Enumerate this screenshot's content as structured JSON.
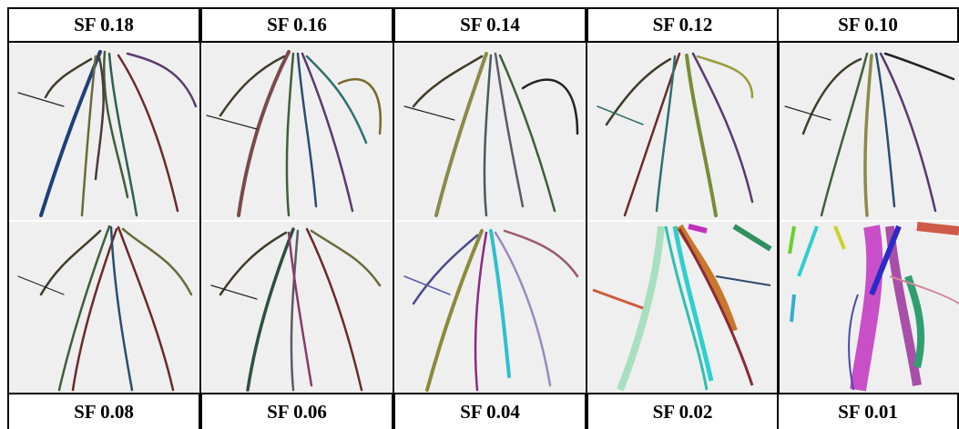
{
  "top_labels": [
    "SF 0.18",
    "SF 0.16",
    "SF 0.14",
    "SF 0.12",
    "SF 0.10"
  ],
  "bottom_labels": [
    "SF 0.08",
    "SF 0.06",
    "SF 0.04",
    "SF 0.02",
    "SF 0.01"
  ],
  "background_color": "#efefef",
  "root_colors": [
    "#2b4d6e",
    "#6b2a2a",
    "#3e5f3a",
    "#5a3a6e",
    "#7a6a2a",
    "#2f6f6f",
    "#4a4a2a",
    "#8a3a6a"
  ]
}
